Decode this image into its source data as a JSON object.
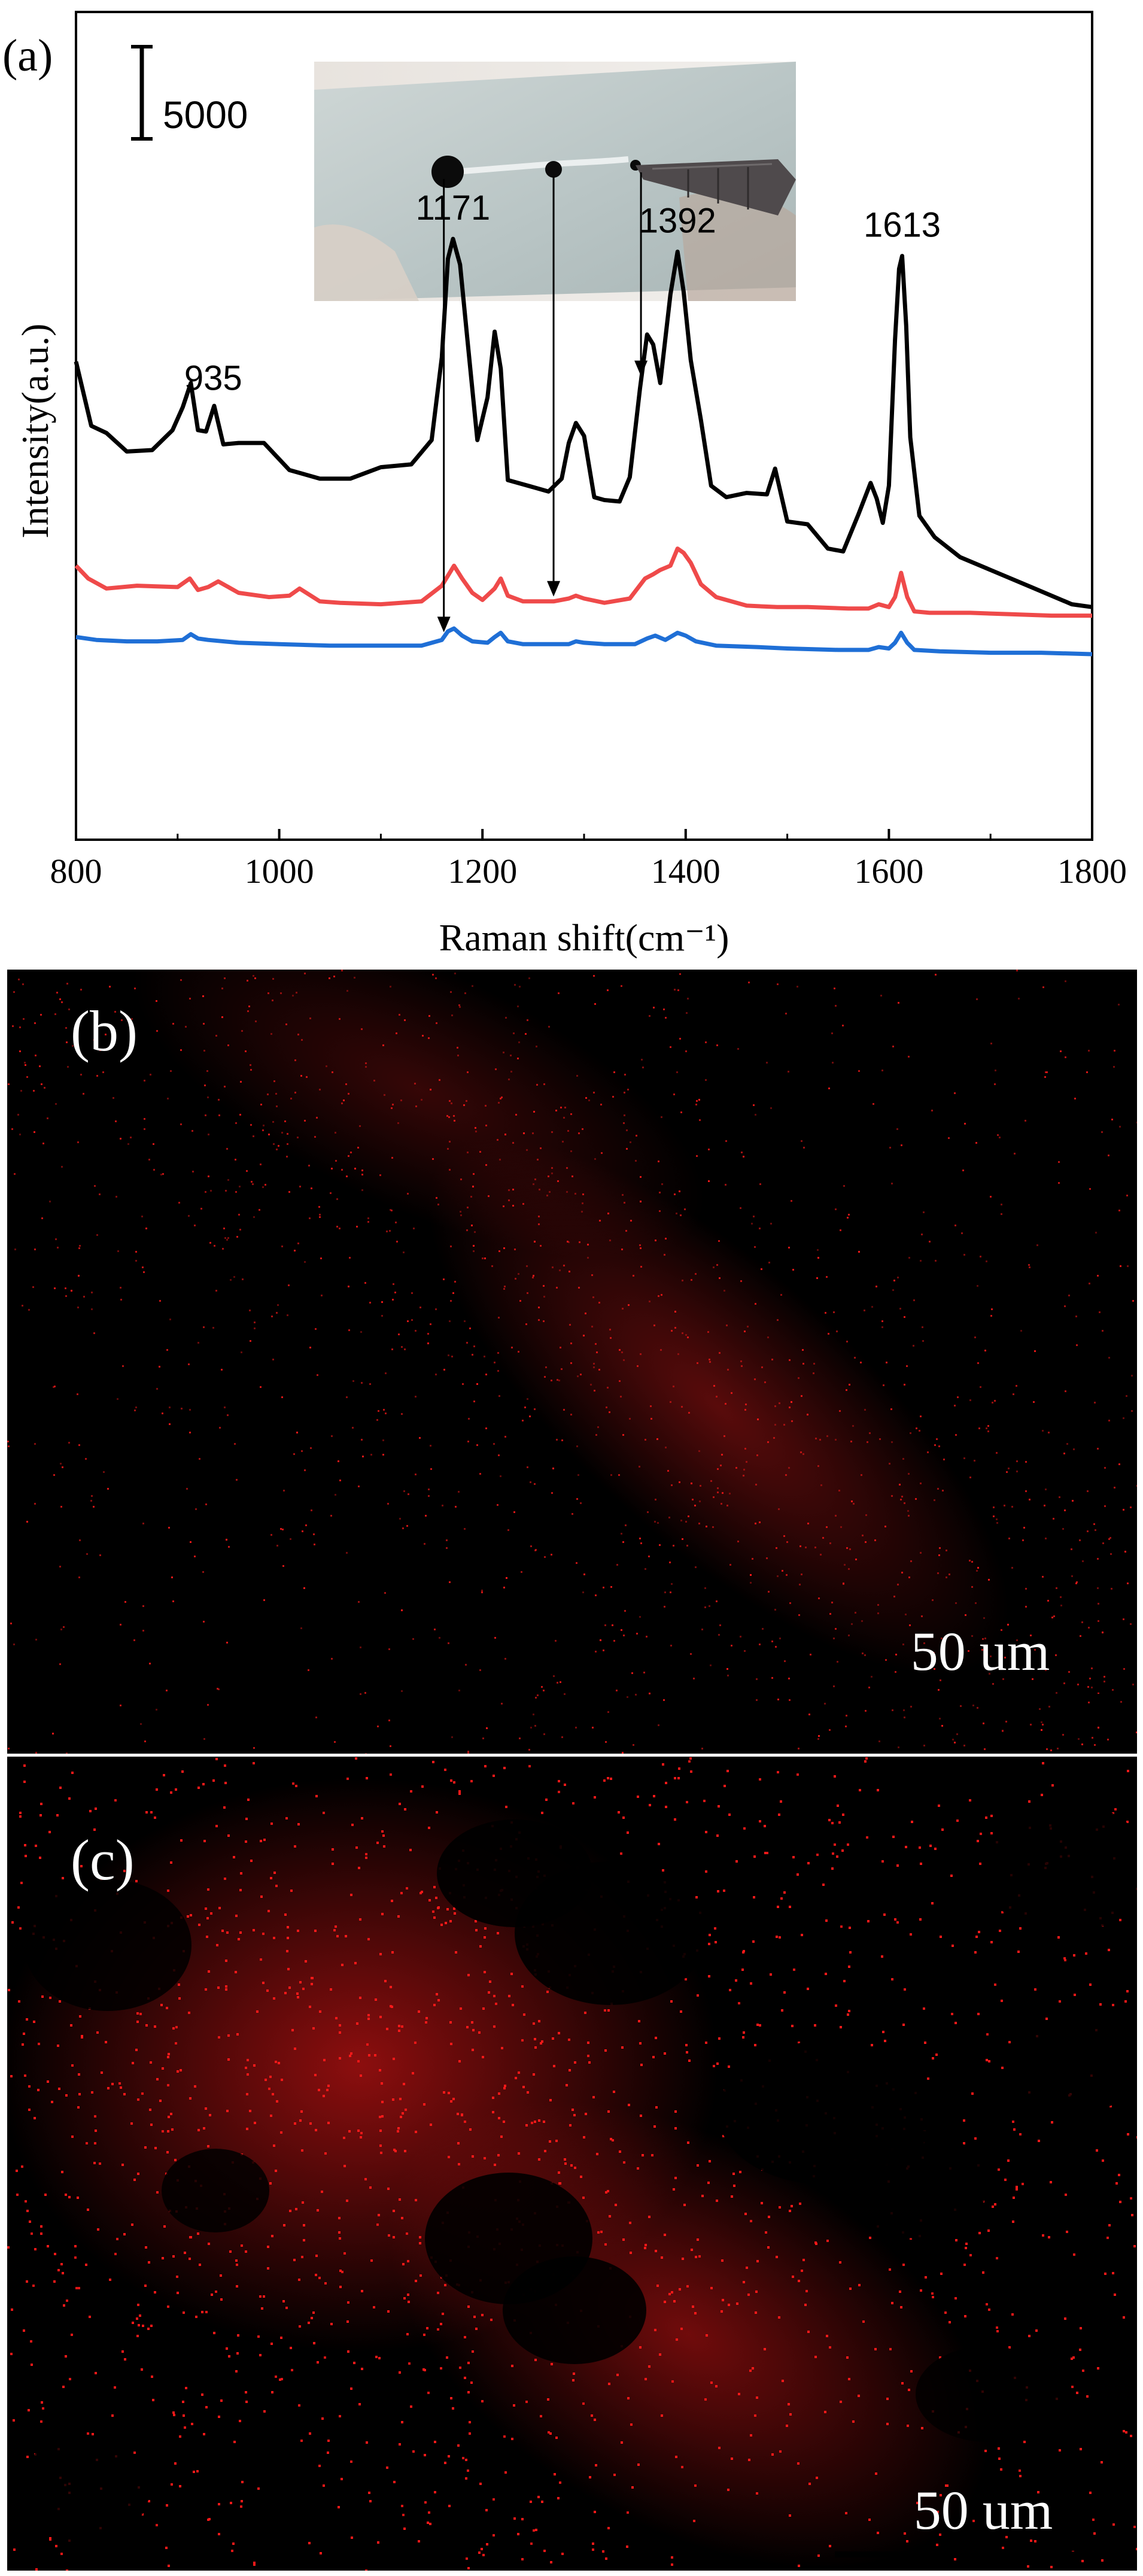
{
  "panels": {
    "a": {
      "label": "(a)",
      "scale_bar_label": "5000",
      "peak_labels": [
        "935",
        "1171",
        "1392",
        "1613"
      ],
      "inset": {
        "description_name": "glass-slide-photo"
      }
    },
    "b": {
      "label": "(b)",
      "scale_label": "50 um",
      "map_intensity": "low"
    },
    "c": {
      "label": "(c)",
      "scale_label": "50 um",
      "map_intensity": "high"
    }
  },
  "colors": {
    "black_series": "#000000",
    "red_series": "#ef4a4a",
    "blue_series": "#1f6fd6",
    "map_red": "#ff1a1a",
    "scale_bar": "#9fd0ea"
  },
  "chart_data": {
    "type": "line",
    "title": "",
    "xlabel": "Raman shift(cm⁻¹)",
    "ylabel": "Intensity(a.u.)",
    "xlim": [
      800,
      1800
    ],
    "ylim": [
      0,
      58000
    ],
    "xticks": [
      800,
      1000,
      1200,
      1400,
      1600,
      1800
    ],
    "xtick_labels": [
      "800",
      "1000",
      "1200",
      "1400",
      "1600",
      "1800"
    ],
    "scale_bar_value": 5000,
    "annotations": [
      {
        "text": "935",
        "x": 935
      },
      {
        "text": "1171",
        "x": 1171
      },
      {
        "text": "1392",
        "x": 1392
      },
      {
        "text": "1613",
        "x": 1613
      }
    ],
    "arrows": [
      {
        "from": "inset-spot-large",
        "x": 1162,
        "to_series": "blue"
      },
      {
        "from": "inset-spot-small",
        "x": 1270,
        "to_series": "red"
      },
      {
        "from": "inset-spot-tip",
        "x": 1356,
        "to_series": "black"
      }
    ],
    "series": [
      {
        "name": "black",
        "color": "#000000",
        "x": [
          800,
          815,
          830,
          850,
          875,
          895,
          905,
          913,
          920,
          928,
          936,
          945,
          960,
          985,
          1010,
          1040,
          1070,
          1100,
          1130,
          1150,
          1160,
          1166,
          1171,
          1178,
          1185,
          1195,
          1205,
          1212,
          1218,
          1225,
          1235,
          1250,
          1265,
          1278,
          1285,
          1292,
          1300,
          1310,
          1320,
          1335,
          1345,
          1355,
          1362,
          1368,
          1375,
          1385,
          1392,
          1398,
          1405,
          1415,
          1425,
          1440,
          1460,
          1480,
          1488,
          1500,
          1520,
          1540,
          1555,
          1570,
          1582,
          1588,
          1594,
          1600,
          1606,
          1610,
          1613,
          1617,
          1621,
          1630,
          1645,
          1670,
          1700,
          1740,
          1780,
          1800
        ],
        "y": [
          33500,
          29000,
          28500,
          27200,
          27300,
          28700,
          30300,
          32000,
          28700,
          28600,
          30400,
          27700,
          27800,
          27800,
          25900,
          25300,
          25300,
          26100,
          26300,
          28000,
          33800,
          40700,
          42100,
          40300,
          35200,
          28000,
          31000,
          35600,
          33000,
          25200,
          25000,
          24700,
          24400,
          25300,
          27800,
          29200,
          28300,
          24000,
          23800,
          23700,
          25400,
          31600,
          35400,
          34700,
          32000,
          38200,
          41200,
          38400,
          33600,
          29400,
          24800,
          24000,
          24300,
          24200,
          26000,
          22300,
          22100,
          20400,
          20200,
          22800,
          25000,
          23900,
          22200,
          24800,
          35000,
          40000,
          40900,
          36000,
          28200,
          22700,
          21200,
          19800,
          18900,
          17700,
          16500,
          16300
        ]
      },
      {
        "name": "red",
        "color": "#ef4a4a",
        "x": [
          800,
          812,
          830,
          860,
          900,
          912,
          920,
          930,
          940,
          960,
          990,
          1010,
          1020,
          1040,
          1060,
          1100,
          1140,
          1160,
          1166,
          1172,
          1180,
          1190,
          1200,
          1212,
          1218,
          1225,
          1240,
          1270,
          1285,
          1292,
          1300,
          1320,
          1345,
          1360,
          1368,
          1375,
          1385,
          1392,
          1398,
          1405,
          1415,
          1430,
          1460,
          1490,
          1520,
          1560,
          1580,
          1590,
          1600,
          1606,
          1612,
          1618,
          1625,
          1640,
          1680,
          1720,
          1760,
          1800
        ],
        "y": [
          19200,
          18300,
          17600,
          17800,
          17700,
          18300,
          17500,
          17700,
          18100,
          17300,
          17000,
          17100,
          17600,
          16700,
          16600,
          16500,
          16700,
          17800,
          18500,
          19200,
          18300,
          17300,
          16800,
          17600,
          18300,
          17100,
          16700,
          16700,
          16900,
          17100,
          16900,
          16600,
          16900,
          18300,
          18600,
          18900,
          19200,
          20400,
          20100,
          19400,
          17900,
          17000,
          16400,
          16300,
          16300,
          16200,
          16200,
          16500,
          16300,
          17000,
          18700,
          17000,
          16000,
          15900,
          15900,
          15800,
          15700,
          15700
        ]
      },
      {
        "name": "blue",
        "color": "#1f6fd6",
        "x": [
          800,
          820,
          850,
          880,
          905,
          913,
          920,
          930,
          960,
          1000,
          1050,
          1100,
          1140,
          1160,
          1166,
          1172,
          1180,
          1190,
          1205,
          1212,
          1218,
          1225,
          1240,
          1270,
          1285,
          1292,
          1300,
          1320,
          1350,
          1362,
          1370,
          1380,
          1392,
          1400,
          1410,
          1430,
          1470,
          1500,
          1550,
          1580,
          1590,
          1600,
          1606,
          1612,
          1618,
          1625,
          1650,
          1700,
          1750,
          1800
        ],
        "y": [
          14200,
          14000,
          13900,
          13900,
          14000,
          14400,
          14100,
          14000,
          13800,
          13700,
          13600,
          13600,
          13600,
          14000,
          14600,
          14800,
          14300,
          13900,
          13800,
          14200,
          14500,
          13900,
          13700,
          13700,
          13700,
          13900,
          13800,
          13700,
          13700,
          14100,
          14300,
          14000,
          14500,
          14300,
          13900,
          13600,
          13500,
          13400,
          13300,
          13300,
          13500,
          13400,
          13800,
          14500,
          13800,
          13300,
          13200,
          13100,
          13100,
          13000
        ]
      }
    ]
  }
}
